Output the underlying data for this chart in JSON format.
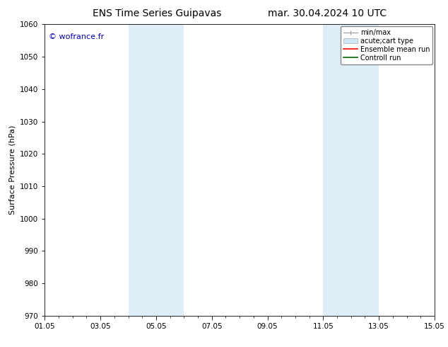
{
  "title_left": "ENS Time Series Guipavas",
  "title_right": "mar. 30.04.2024 10 UTC",
  "ylabel": "Surface Pressure (hPa)",
  "ylim": [
    970,
    1060
  ],
  "yticks": [
    970,
    980,
    990,
    1000,
    1010,
    1020,
    1030,
    1040,
    1050,
    1060
  ],
  "xtick_labels": [
    "01.05",
    "03.05",
    "05.05",
    "07.05",
    "09.05",
    "11.05",
    "13.05",
    "15.05"
  ],
  "xtick_positions": [
    0,
    2,
    4,
    6,
    8,
    10,
    12,
    14
  ],
  "xlim": [
    0,
    14
  ],
  "shaded_regions": [
    {
      "start": 3,
      "end": 5
    },
    {
      "start": 10,
      "end": 12
    }
  ],
  "shaded_color": "#ddeef8",
  "bg_color": "#ffffff",
  "watermark": "© wofrance.fr",
  "watermark_color": "#0000cc",
  "legend_entries": [
    {
      "label": "min/max"
    },
    {
      "label": "acute;cart type"
    },
    {
      "label": "Ensemble mean run"
    },
    {
      "label": "Controll run"
    }
  ],
  "legend_handle_colors": [
    "#999999",
    "#cccccc",
    "#ff0000",
    "#008000"
  ],
  "title_fontsize": 10,
  "axis_label_fontsize": 8,
  "tick_fontsize": 7.5,
  "watermark_fontsize": 8,
  "legend_fontsize": 7
}
